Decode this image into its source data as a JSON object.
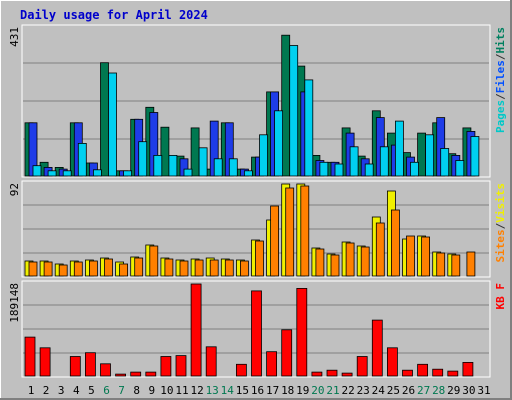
{
  "chart_data": {
    "type": "bar",
    "title": "Daily usage for April 2024",
    "categories": [
      "1",
      "2",
      "3",
      "4",
      "5",
      "6",
      "7",
      "8",
      "9",
      "10",
      "11",
      "12",
      "13",
      "14",
      "15",
      "16",
      "17",
      "18",
      "19",
      "20",
      "21",
      "22",
      "23",
      "24",
      "25",
      "26",
      "27",
      "28",
      "29",
      "30",
      "31"
    ],
    "weekend_days": [
      "6",
      "7",
      "13",
      "14",
      "20",
      "21",
      "27",
      "28"
    ],
    "panels": [
      {
        "id": "top",
        "ymax_label": "431",
        "ylim": [
          0,
          431
        ],
        "axis_label": [
          {
            "text": "Pages",
            "color": "#00c8c8"
          },
          {
            "text": "/",
            "color": "#333333"
          },
          {
            "text": "Files",
            "color": "#0050ff"
          },
          {
            "text": "/",
            "color": "#333333"
          },
          {
            "text": "Hits",
            "color": "#008060"
          }
        ],
        "series": [
          {
            "name": "Hits",
            "color": "#007850",
            "values": [
              155,
              40,
              25,
              155,
              38,
              330,
              15,
              165,
              200,
              142,
              58,
              140,
              20,
              155,
              20,
              55,
              245,
              410,
              320,
              60,
              40,
              140,
              58,
              190,
              125,
              68,
              125,
              155,
              65,
              140,
              0
            ]
          },
          {
            "name": "Files",
            "color": "#1e3ce8",
            "values": [
              155,
              25,
              20,
              155,
              38,
              0,
              15,
              165,
              185,
              0,
              50,
              0,
              160,
              155,
              20,
              55,
              245,
              0,
              245,
              45,
              40,
              125,
              50,
              170,
              90,
              55,
              0,
              170,
              60,
              130,
              0
            ]
          },
          {
            "name": "Pages",
            "color": "#00d0f0",
            "values": [
              30,
              15,
              15,
              95,
              18,
              300,
              15,
              100,
              60,
              60,
              20,
              82,
              50,
              50,
              15,
              120,
              190,
              380,
              280,
              40,
              35,
              85,
              35,
              85,
              160,
              40,
              120,
              80,
              45,
              115,
              0
            ]
          }
        ]
      },
      {
        "id": "mid",
        "ymax_label": "92",
        "ylim": [
          0,
          92
        ],
        "axis_label": [
          {
            "text": "Sites",
            "color": "#ff8000"
          },
          {
            "text": "/",
            "color": "#333333"
          },
          {
            "text": "Visits",
            "color": "#f0f000"
          }
        ],
        "series": [
          {
            "name": "Visits",
            "color": "#f0f000",
            "values": [
              15,
              15,
              12,
              15,
              16,
              18,
              14,
              19,
              31,
              18,
              16,
              17,
              18,
              17,
              16,
              36,
              56,
              92,
              92,
              28,
              22,
              34,
              30,
              59,
              85,
              37,
              40,
              24,
              22,
              0,
              0
            ]
          },
          {
            "name": "Sites",
            "color": "#ff8000",
            "values": [
              14,
              14,
              11,
              14,
              15,
              17,
              12,
              18,
              30,
              17,
              15,
              16,
              16,
              16,
              15,
              35,
              70,
              88,
              90,
              27,
              21,
              33,
              29,
              53,
              66,
              40,
              39,
              23,
              21,
              24,
              0
            ]
          }
        ]
      },
      {
        "id": "bot",
        "ymax_label": "189148",
        "ylim": [
          0,
          189148
        ],
        "axis_label": [
          {
            "text": "KB F",
            "color": "#ff0000"
          }
        ],
        "series": [
          {
            "name": "KB F",
            "color": "#ff0000",
            "values": [
              80000,
              58000,
              0,
              40000,
              48000,
              25000,
              4000,
              8000,
              8000,
              40000,
              42000,
              189148,
              60000,
              0,
              24000,
              175000,
              50000,
              95000,
              180000,
              8000,
              12000,
              6000,
              40000,
              115000,
              58000,
              12000,
              24000,
              14000,
              10000,
              28000,
              0
            ]
          }
        ]
      }
    ]
  }
}
